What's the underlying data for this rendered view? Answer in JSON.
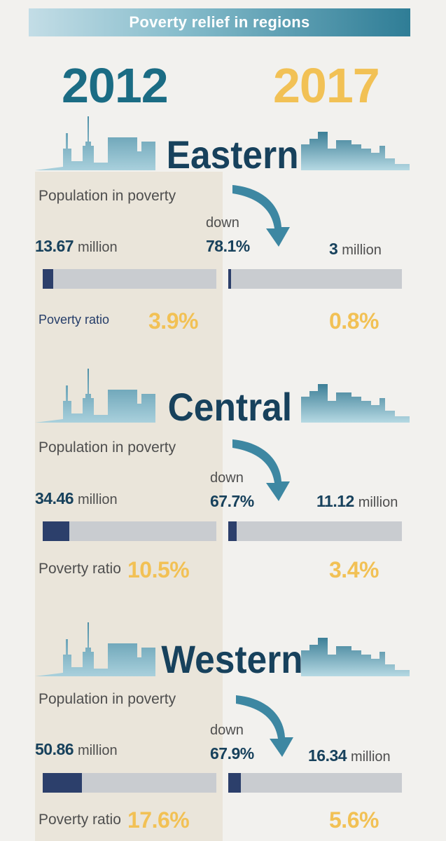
{
  "title": "Poverty relief in regions",
  "years": {
    "start": "2012",
    "end": "2017"
  },
  "colors": {
    "year_start": "#1b6c84",
    "year_end": "#f2c155",
    "title_dark": "#17415c",
    "bar_fill": "#2c3f6b",
    "bar_track": "#c9ccd0"
  },
  "labels": {
    "population": "Population in poverty",
    "ratio": "Poverty ratio",
    "down": "down",
    "unit": "million"
  },
  "regions": [
    {
      "name": "Eastern",
      "pop_2012": "13.67",
      "pop_2017": "3",
      "decline": "78.1%",
      "ratio_2012": "3.9%",
      "ratio_2017": "0.8%"
    },
    {
      "name": "Central",
      "pop_2012": "34.46",
      "pop_2017": "11.12",
      "decline": "67.7%",
      "ratio_2012": "10.5%",
      "ratio_2017": "3.4%"
    },
    {
      "name": "Western",
      "pop_2012": "50.86",
      "pop_2017": "16.34",
      "decline": "67.9%",
      "ratio_2012": "17.6%",
      "ratio_2017": "5.6%"
    }
  ],
  "chart_data": {
    "type": "bar",
    "title": "Poverty relief in regions",
    "categories": [
      "Eastern",
      "Central",
      "Western"
    ],
    "series": [
      {
        "name": "2012",
        "values": [
          13.67,
          34.46,
          50.86
        ]
      },
      {
        "name": "2017",
        "values": [
          3,
          11.12,
          16.34
        ]
      }
    ],
    "decline_percent": [
      78.1,
      67.7,
      67.9
    ],
    "poverty_ratio_2012": [
      3.9,
      10.5,
      17.6
    ],
    "poverty_ratio_2017": [
      0.8,
      3.4,
      5.6
    ],
    "ylabel": "Population in poverty (million)"
  }
}
